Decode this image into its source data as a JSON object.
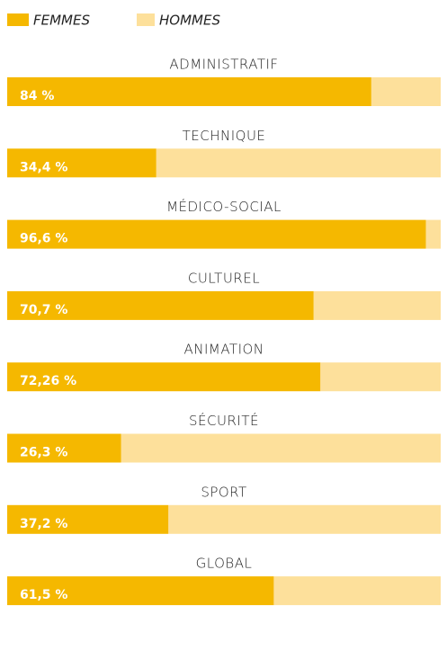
{
  "chart_data": {
    "type": "bar",
    "orientation": "horizontal",
    "stacked": true,
    "categories": [
      "ADMINISTRATIF",
      "TECHNIQUE",
      "MÉDICO-SOCIAL",
      "CULTUREL",
      "ANIMATION",
      "SÉCURITÉ",
      "SPORT",
      "GLOBAL"
    ],
    "series": [
      {
        "name": "FEMMES",
        "color": "#f5b800",
        "values": [
          84,
          34.4,
          96.6,
          70.7,
          72.26,
          26.3,
          37.2,
          61.5
        ],
        "value_labels": [
          "84 %",
          "34,4 %",
          "96,6 %",
          "70,7 %",
          "72,26 %",
          "26,3 %",
          "37,2 %",
          "61,5 %"
        ]
      },
      {
        "name": "HOMMES",
        "color": "#fde09b",
        "values": [
          16,
          65.6,
          3.4,
          29.3,
          27.74,
          73.7,
          62.8,
          38.5
        ]
      }
    ],
    "legend": "top-left"
  }
}
